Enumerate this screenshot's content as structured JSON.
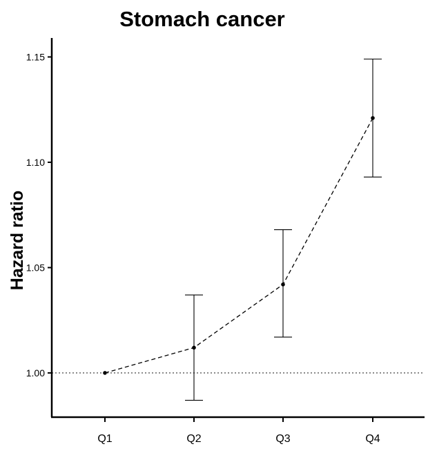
{
  "chart_data": {
    "type": "scatter",
    "title": "Stomach cancer",
    "xlabel": "",
    "ylabel": "Hazard ratio",
    "categories": [
      "Q1",
      "Q2",
      "Q3",
      "Q4"
    ],
    "series": [
      {
        "values": [
          1.0,
          1.012,
          1.042,
          1.121
        ],
        "ci_lower": [
          null,
          0.987,
          1.017,
          1.093
        ],
        "ci_upper": [
          null,
          1.037,
          1.068,
          1.149
        ]
      }
    ],
    "connector": "dashed",
    "reference_line": 1.0,
    "ylim": [
      0.979,
      1.159
    ],
    "yticks": [
      1.0,
      1.05,
      1.1,
      1.15
    ],
    "ytick_labels": [
      "1.00",
      "1.05",
      "1.10",
      "1.15"
    ],
    "grid": false,
    "legend": "none"
  }
}
